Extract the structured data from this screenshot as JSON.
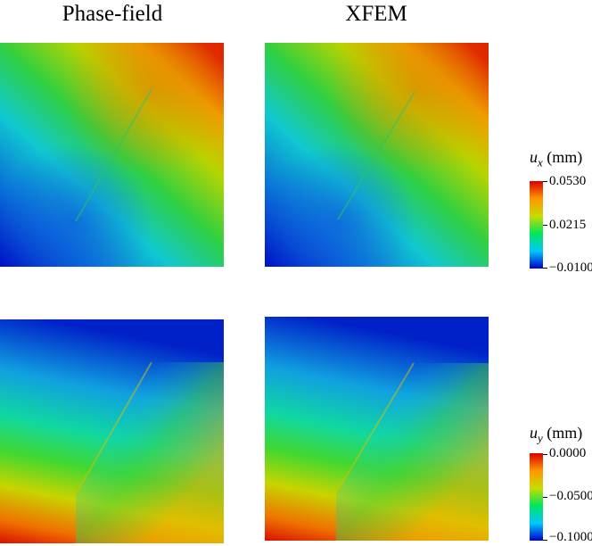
{
  "columns": {
    "left": "Phase-field",
    "right": "XFEM"
  },
  "colorbars": {
    "ux": {
      "symbol": "u",
      "sub": "x",
      "unit": "(mm)",
      "max": "0.0530",
      "mid": "0.0215",
      "min": "−0.0100"
    },
    "uy": {
      "symbol": "u",
      "sub": "y",
      "unit": "(mm)",
      "max": "0.0000",
      "mid": "−0.0500",
      "min": "−0.1000"
    }
  },
  "colormap": [
    "#0000c8",
    "#00c8ff",
    "#00e65a",
    "#c8dc00",
    "#ff9600",
    "#dc0000"
  ]
}
